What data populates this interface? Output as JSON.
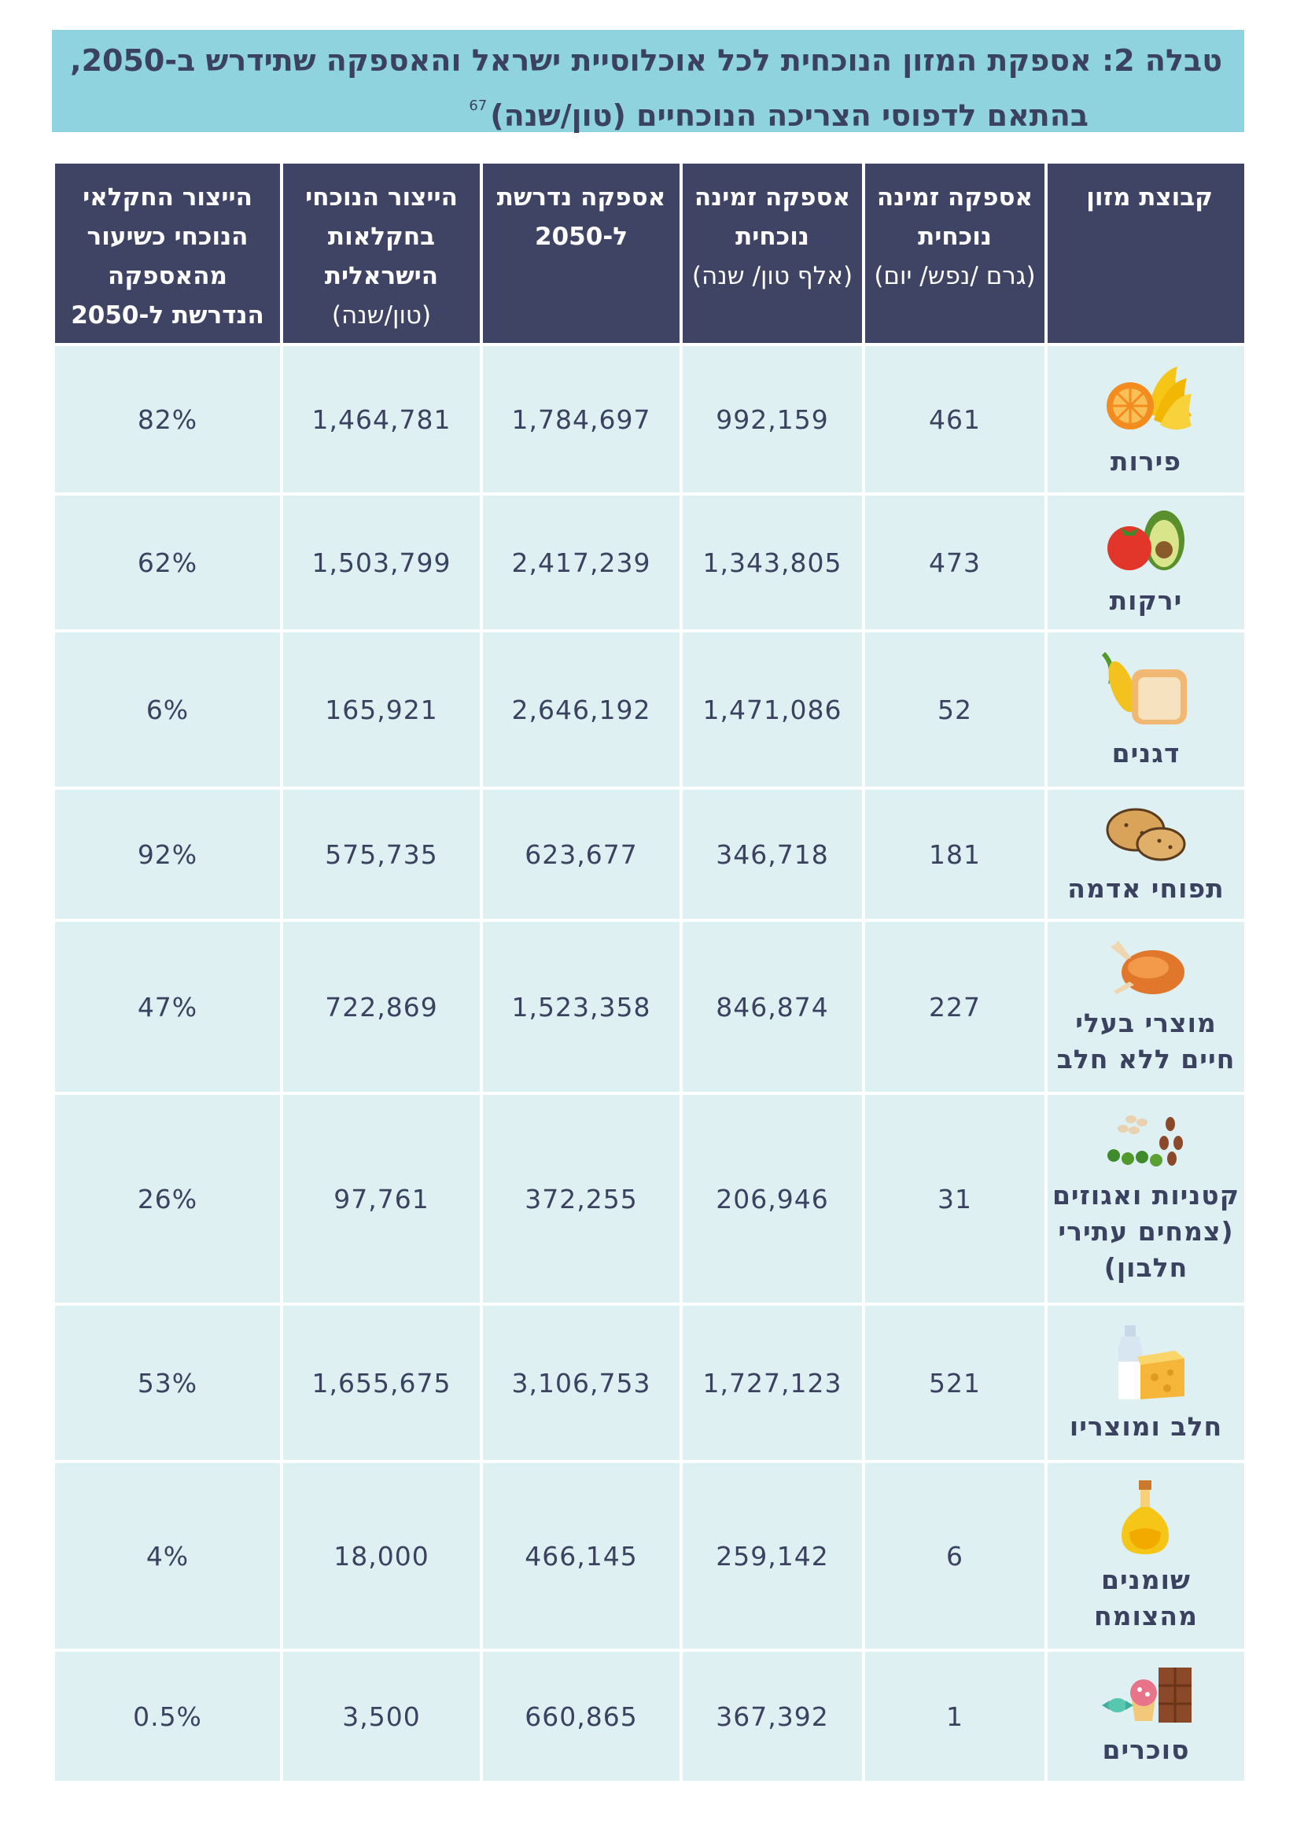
{
  "title": {
    "line1": "טבלה 2: אספקת המזון הנוכחית לכל אוכלוסיית ישראל והאספקה שתידרש ב-2050,",
    "line2": "בהתאם לדפוסי הצריכה הנוכחיים (טון/שנה)",
    "footnote": "67"
  },
  "headers": {
    "group": "קבוצת מזון",
    "daily_supply": {
      "bold": "אספקה זמינה נוכחית",
      "unit": "(גרם /נפש/ יום)"
    },
    "current_supply": {
      "bold": "אספקה זמינה נוכחית",
      "unit": "(אלף טון/ שנה)"
    },
    "required_2050": {
      "bold": "אספקה נדרשת ל-2050",
      "unit": ""
    },
    "israeli_production": {
      "bold": "הייצור הנוכחי בחקלאות הישראלית",
      "unit": "(טון/שנה)"
    },
    "production_share": {
      "bold": "הייצור החקלאי הנוכחי כשיעור מהאספקה הנדרשת ל-2050",
      "unit": ""
    }
  },
  "rows": [
    {
      "group": "פירות",
      "icon": "fruit-icon",
      "daily": "461",
      "current": "992,159",
      "required": "1,784,697",
      "production": "1,464,781",
      "share": "82%"
    },
    {
      "group": "ירקות",
      "icon": "vegetables-icon",
      "daily": "473",
      "current": "1,343,805",
      "required": "2,417,239",
      "production": "1,503,799",
      "share": "62%"
    },
    {
      "group": "דגנים",
      "icon": "grains-icon",
      "daily": "52",
      "current": "1,471,086",
      "required": "2,646,192",
      "production": "165,921",
      "share": "6%"
    },
    {
      "group": "תפוחי אדמה",
      "icon": "potatoes-icon",
      "daily": "181",
      "current": "346,718",
      "required": "623,677",
      "production": "575,735",
      "share": "92%"
    },
    {
      "group": "מוצרי בעלי חיים ללא חלב",
      "icon": "chicken-icon",
      "daily": "227",
      "current": "846,874",
      "required": "1,523,358",
      "production": "722,869",
      "share": "47%"
    },
    {
      "group": "קטניות ואגוזים (צמחים עתירי חלבון)",
      "icon": "legumes-nuts-icon",
      "daily": "31",
      "current": "206,946",
      "required": "372,255",
      "production": "97,761",
      "share": "26%"
    },
    {
      "group": "חלב ומוצריו",
      "icon": "dairy-icon",
      "daily": "521",
      "current": "1,727,123",
      "required": "3,106,753",
      "production": "1,655,675",
      "share": "53%"
    },
    {
      "group": "שומנים מהצומח",
      "icon": "oil-icon",
      "daily": "6",
      "current": "259,142",
      "required": "466,145",
      "production": "18,000",
      "share": "4%"
    },
    {
      "group": "סוכרים",
      "icon": "sweets-icon",
      "daily": "1",
      "current": "367,392",
      "required": "660,865",
      "production": "3,500",
      "share": "0.5%"
    }
  ]
}
